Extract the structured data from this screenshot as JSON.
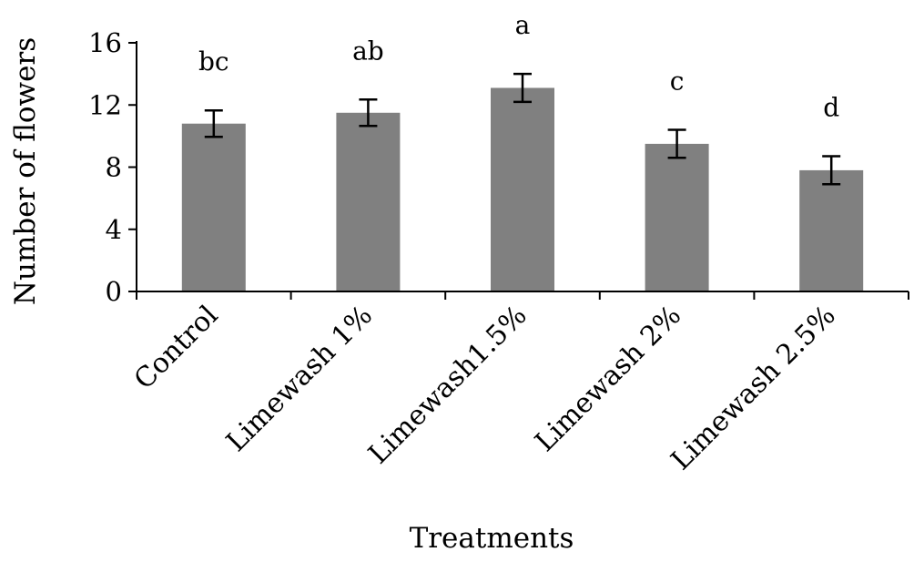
{
  "chart_data": {
    "type": "bar",
    "title": "",
    "xlabel": "Treatments",
    "ylabel": "Number of flowers",
    "categories": [
      "Control",
      "Limewash 1%",
      "Limewash1.5%",
      "Limewash 2%",
      "Limewash 2.5%"
    ],
    "values": [
      10.8,
      11.5,
      13.1,
      9.5,
      7.8
    ],
    "errors": [
      0.85,
      0.85,
      0.9,
      0.9,
      0.9
    ],
    "significance_letters": [
      "bc",
      "ab",
      "a",
      "c",
      "d"
    ],
    "ylim": [
      0,
      16
    ],
    "yticks": [
      "0",
      "4",
      "8",
      "12",
      "16"
    ],
    "bar_color": "#808080",
    "grid": false,
    "legend": "none"
  }
}
